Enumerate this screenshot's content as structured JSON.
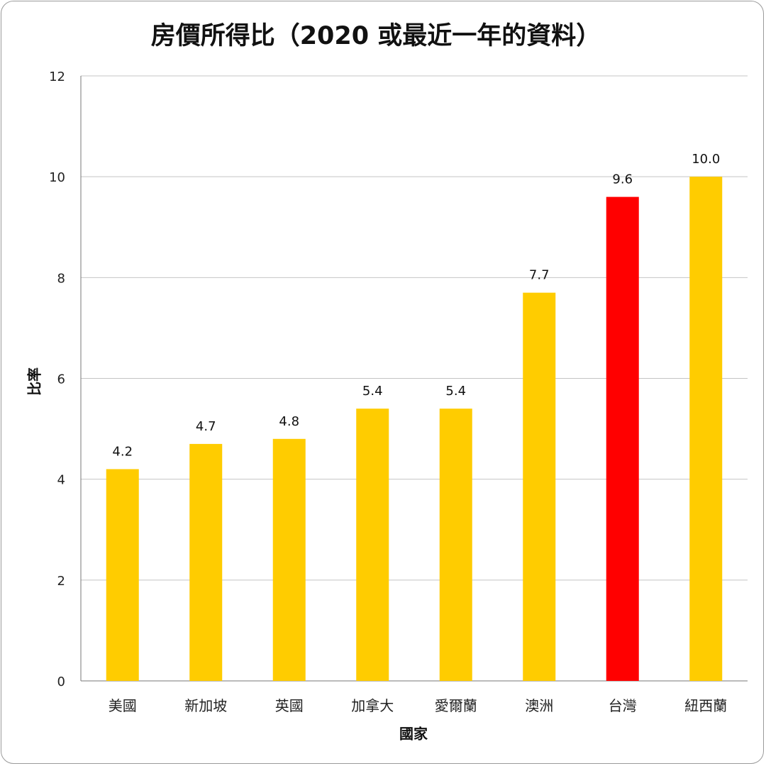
{
  "chart_data": {
    "type": "bar",
    "title": "房價所得比（2020 或最近一年的資料）",
    "xlabel": "國家",
    "ylabel": "比率",
    "categories": [
      "美國",
      "新加坡",
      "英國",
      "加拿大",
      "愛爾蘭",
      "澳洲",
      "台灣",
      "紐西蘭"
    ],
    "values": [
      4.2,
      4.7,
      4.8,
      5.4,
      5.4,
      7.7,
      9.6,
      10.0
    ],
    "data_labels": [
      "4.2",
      "4.7",
      "4.8",
      "5.4",
      "5.4",
      "7.7",
      "9.6",
      "10.0"
    ],
    "colors": [
      "#ffcc00",
      "#ffcc00",
      "#ffcc00",
      "#ffcc00",
      "#ffcc00",
      "#ffcc00",
      "#ff0000",
      "#ffcc00"
    ],
    "ylim": [
      0,
      12
    ],
    "yticks": [
      0,
      2,
      4,
      6,
      8,
      10,
      12
    ],
    "grid": true,
    "legend": "none"
  }
}
